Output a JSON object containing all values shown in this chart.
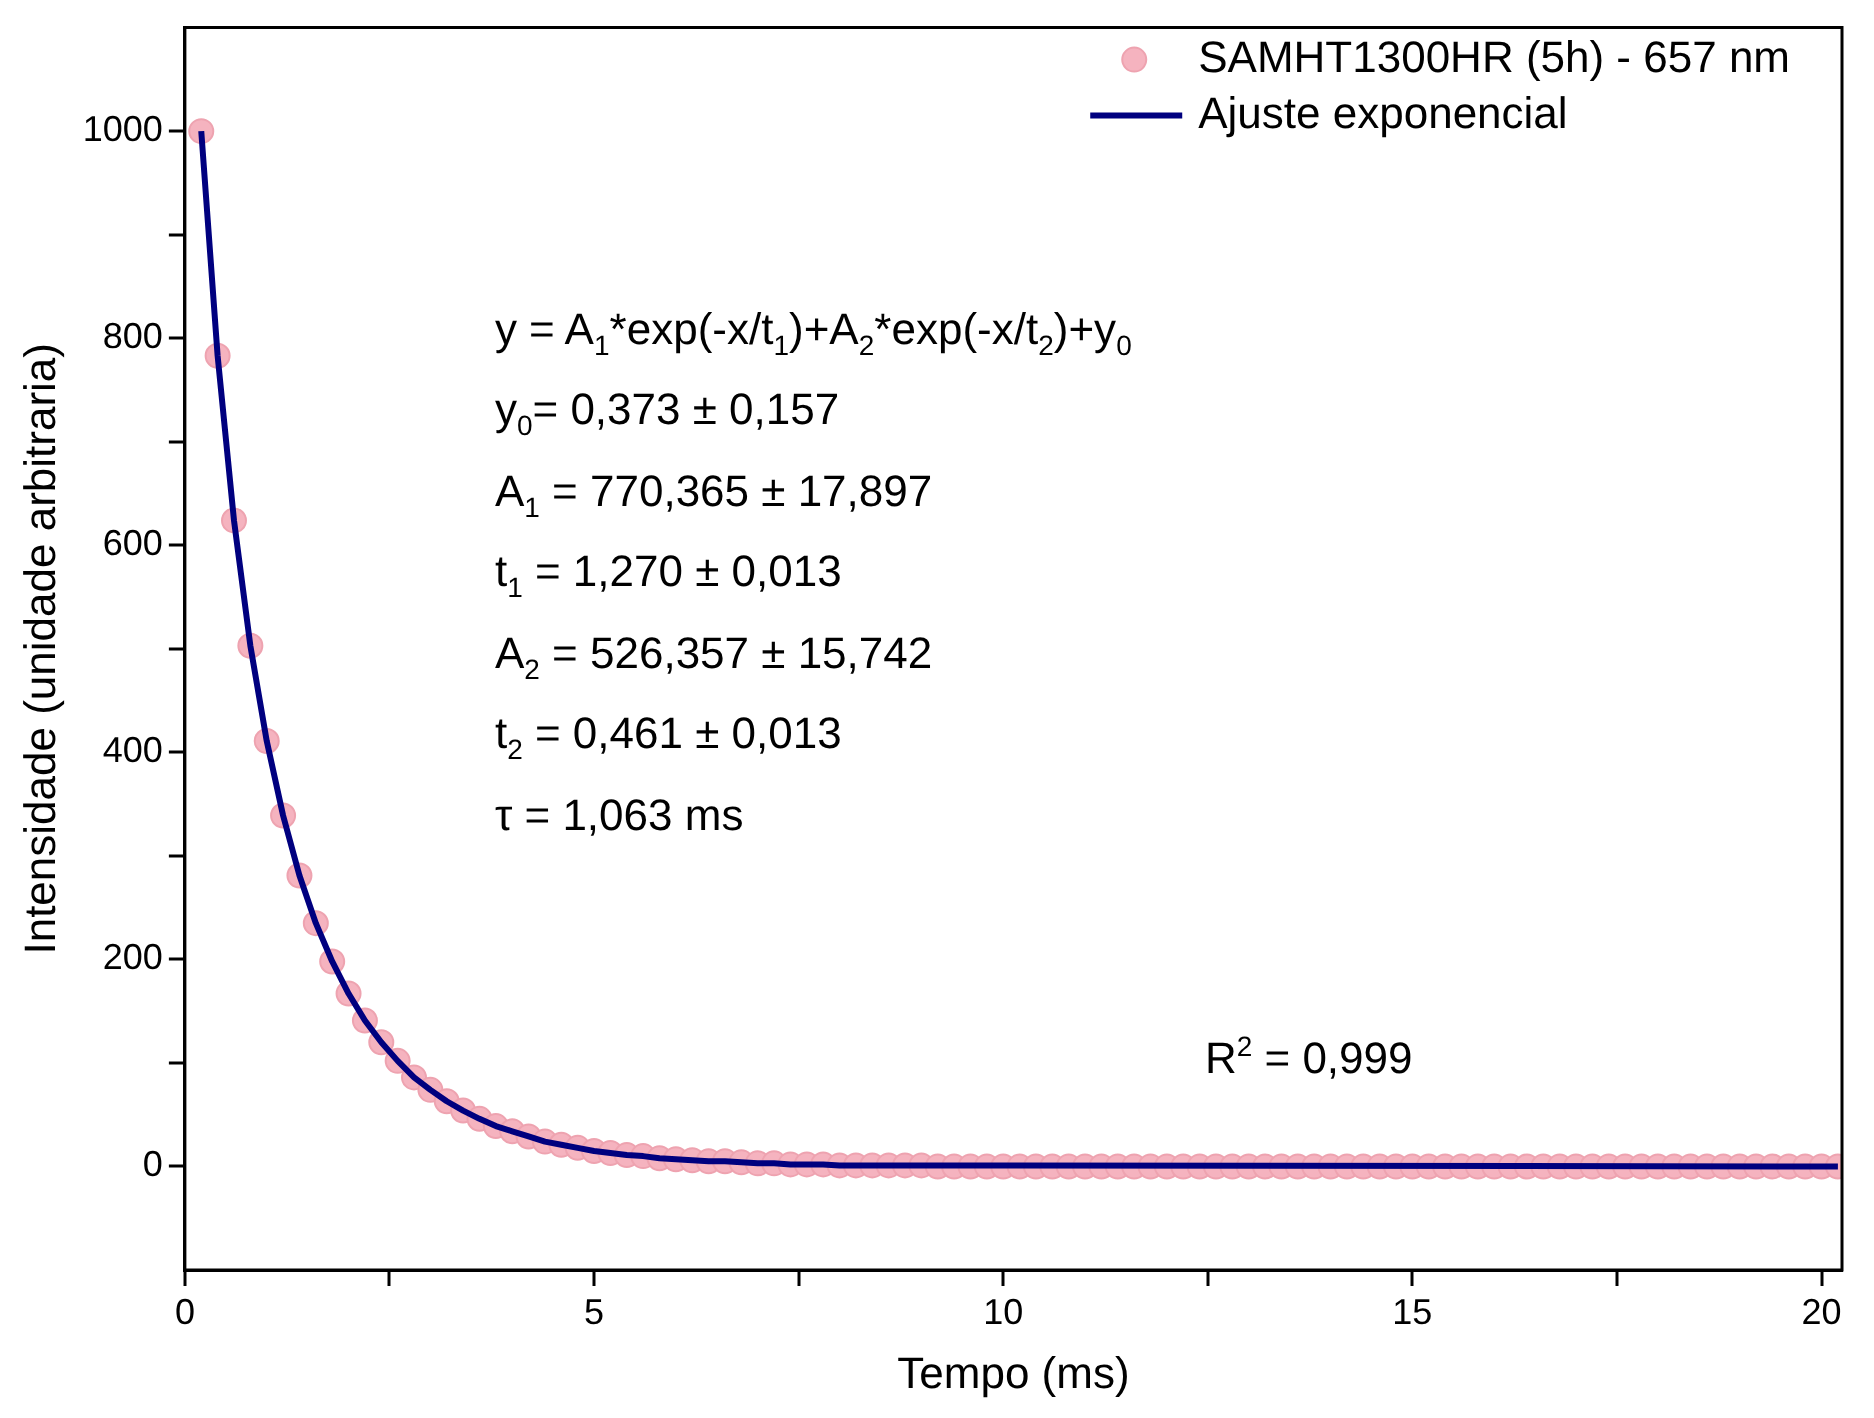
{
  "chart_data": {
    "type": "scatter",
    "xlabel": "Tempo (ms)",
    "ylabel": "Intensidade (unidade arbitraria)",
    "xlim": [
      0,
      20.25
    ],
    "xticks": [
      0,
      {
        "value": 2.5,
        "label": null
      },
      5,
      {
        "value": 7.5,
        "label": null
      },
      10,
      {
        "value": 12.5,
        "label": null
      },
      15,
      {
        "value": 17.5,
        "label": null
      },
      20
    ],
    "ylim": [
      -100,
      1100
    ],
    "yticks": [
      0,
      {
        "value": 100,
        "label": null
      },
      200,
      {
        "value": 300,
        "label": null
      },
      400,
      {
        "value": 500,
        "label": null
      },
      600,
      {
        "value": 700,
        "label": null
      },
      800,
      {
        "value": 900,
        "label": null
      },
      1000
    ],
    "legend": "top right",
    "series": [
      {
        "name": "SAMHT1300HR (5h) - 657 nm",
        "marker": "circle",
        "color": "#f5b3bf",
        "x": [
          0.2,
          0.4,
          0.6,
          0.8,
          1.0,
          1.2,
          1.4,
          1.6,
          1.8,
          2.0,
          2.2,
          2.4,
          2.6,
          2.8,
          3.0,
          3.2,
          3.4,
          3.6,
          3.8,
          4.0,
          4.2,
          4.4,
          4.6,
          4.8,
          5.0,
          5.2,
          5.4,
          5.6,
          5.8,
          6.0,
          6.2,
          6.4,
          6.6,
          6.8,
          7.0,
          7.2,
          7.4,
          7.6,
          7.8,
          8.0,
          8.2,
          8.4,
          8.6,
          8.8,
          9.0,
          9.2,
          9.4,
          9.6,
          9.8,
          10.0,
          10.2,
          10.4,
          10.6,
          10.8,
          11.0,
          11.2,
          11.4,
          11.6,
          11.8,
          12.0,
          12.2,
          12.4,
          12.6,
          12.8,
          13.0,
          13.2,
          13.4,
          13.6,
          13.8,
          14.0,
          14.2,
          14.4,
          14.6,
          14.8,
          15.0,
          15.2,
          15.4,
          15.6,
          15.8,
          16.0,
          16.2,
          16.4,
          16.6,
          16.8,
          17.0,
          17.2,
          17.4,
          17.6,
          17.8,
          18.0,
          18.2,
          18.4,
          18.6,
          18.8,
          19.0,
          19.2,
          19.4,
          19.6,
          19.8,
          20.0,
          20.2
        ],
        "values": [
          1000,
          783,
          624,
          503,
          411,
          339,
          281,
          235,
          198,
          167,
          141,
          120,
          102,
          86,
          74,
          63,
          54,
          46,
          39,
          34,
          29,
          24,
          21,
          18,
          15,
          13,
          11,
          10,
          8,
          7,
          6,
          5,
          5,
          4,
          3,
          3,
          2,
          2,
          2,
          1,
          1,
          1,
          1,
          1,
          1,
          0,
          0,
          0,
          0,
          0,
          0,
          0,
          0,
          0,
          0,
          0,
          0,
          0,
          0,
          0,
          0,
          0,
          0,
          0,
          0,
          0,
          0,
          0,
          0,
          0,
          0,
          0,
          0,
          0,
          0,
          0,
          0,
          0,
          0,
          0,
          0,
          0,
          0,
          0,
          0,
          0,
          0,
          0,
          0,
          0,
          0,
          0,
          0,
          0,
          0,
          0,
          0,
          0,
          0,
          0,
          0
        ]
      },
      {
        "name": "Ajuste exponencial",
        "type": "line",
        "marker": "none",
        "color": "#00007f",
        "x": [
          0.2,
          0.4,
          0.6,
          0.8,
          1.0,
          1.2,
          1.4,
          1.6,
          1.8,
          2.0,
          2.2,
          2.4,
          2.6,
          2.8,
          3.0,
          3.2,
          3.4,
          3.6,
          3.8,
          4.0,
          4.2,
          4.4,
          4.6,
          4.8,
          5.0,
          5.2,
          5.4,
          5.6,
          5.8,
          6.0,
          6.2,
          6.4,
          6.6,
          6.8,
          7.0,
          7.2,
          7.4,
          7.6,
          7.8,
          8.0,
          8.2,
          8.4,
          8.6,
          8.8,
          9.0,
          20.2
        ],
        "values": [
          1000,
          783,
          624,
          503,
          411,
          339,
          281,
          235,
          198,
          167,
          141,
          120,
          102,
          86,
          74,
          63,
          54,
          46,
          39,
          34,
          29,
          24,
          21,
          18,
          15,
          13,
          11,
          10,
          8,
          7,
          6,
          5,
          5,
          4,
          3,
          3,
          2,
          2,
          2,
          1,
          1,
          1,
          1,
          1,
          1,
          0
        ]
      }
    ],
    "annotations": [
      "y = A$_{1}$*exp(-x/t$_{1}$)+A$_{2}$*exp(-x/t$_{2}$)+y$_{0}$",
      "y$_{0}$= 0,373 ± 0,157",
      "A$_{1}$ = 770,365 ± 17,897",
      "t$_{1}$ = 1,270 ± 0,013",
      "A$_{2}$ = 526,357 ± 15,742",
      "t$_{2}$ = 0,461 ± 0,013",
      "τ = 1,063 ms",
      "R$^{2}$ = 0,999"
    ]
  }
}
